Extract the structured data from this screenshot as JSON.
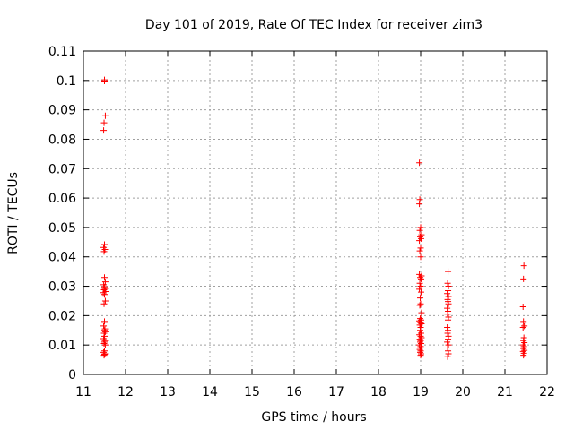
{
  "chart_data": {
    "type": "scatter",
    "title": "Day 101 of 2019, Rate Of TEC Index for receiver zim3",
    "xlabel": "GPS time / hours",
    "ylabel": "ROTI / TECUs",
    "xlim": [
      11,
      22
    ],
    "ylim": [
      0,
      0.11
    ],
    "xticks": [
      "11",
      "12",
      "13",
      "14",
      "15",
      "16",
      "17",
      "18",
      "19",
      "20",
      "21",
      "22"
    ],
    "yticks": [
      "0",
      "0.01",
      "0.02",
      "0.03",
      "0.04",
      "0.05",
      "0.06",
      "0.07",
      "0.08",
      "0.09",
      "0.1",
      "0.11"
    ],
    "grid": true,
    "marker": "+",
    "color": "#ff0000",
    "series": [
      {
        "name": "ROTI",
        "points": [
          [
            11.5,
            0.1002
          ],
          [
            11.5,
            0.0998
          ],
          [
            11.52,
            0.088
          ],
          [
            11.49,
            0.0856
          ],
          [
            11.48,
            0.083
          ],
          [
            11.5,
            0.0442
          ],
          [
            11.48,
            0.0432
          ],
          [
            11.51,
            0.0425
          ],
          [
            11.49,
            0.0418
          ],
          [
            11.5,
            0.033
          ],
          [
            11.52,
            0.0315
          ],
          [
            11.48,
            0.0305
          ],
          [
            11.5,
            0.0298
          ],
          [
            11.51,
            0.0292
          ],
          [
            11.49,
            0.0288
          ],
          [
            11.53,
            0.0282
          ],
          [
            11.47,
            0.0278
          ],
          [
            11.5,
            0.0272
          ],
          [
            11.52,
            0.025
          ],
          [
            11.49,
            0.024
          ],
          [
            11.5,
            0.018
          ],
          [
            11.48,
            0.0165
          ],
          [
            11.51,
            0.0155
          ],
          [
            11.5,
            0.015
          ],
          [
            11.52,
            0.0145
          ],
          [
            11.49,
            0.014
          ],
          [
            11.5,
            0.013
          ],
          [
            11.48,
            0.0122
          ],
          [
            11.51,
            0.0115
          ],
          [
            11.5,
            0.011
          ],
          [
            11.49,
            0.0105
          ],
          [
            11.52,
            0.01
          ],
          [
            11.5,
            0.008
          ],
          [
            11.48,
            0.0075
          ],
          [
            11.51,
            0.007
          ],
          [
            11.5,
            0.0068
          ],
          [
            11.49,
            0.0065
          ],
          [
            18.97,
            0.072
          ],
          [
            18.98,
            0.0595
          ],
          [
            18.97,
            0.058
          ],
          [
            19.0,
            0.05
          ],
          [
            18.98,
            0.049
          ],
          [
            19.02,
            0.0475
          ],
          [
            18.99,
            0.0468
          ],
          [
            19.01,
            0.0462
          ],
          [
            18.97,
            0.0455
          ],
          [
            19.0,
            0.043
          ],
          [
            18.98,
            0.042
          ],
          [
            19.0,
            0.04
          ],
          [
            18.97,
            0.034
          ],
          [
            19.02,
            0.0335
          ],
          [
            18.99,
            0.033
          ],
          [
            19.01,
            0.0325
          ],
          [
            18.98,
            0.031
          ],
          [
            19.0,
            0.03
          ],
          [
            18.97,
            0.029
          ],
          [
            19.01,
            0.028
          ],
          [
            18.99,
            0.026
          ],
          [
            19.0,
            0.024
          ],
          [
            18.98,
            0.0235
          ],
          [
            19.02,
            0.021
          ],
          [
            18.99,
            0.019
          ],
          [
            19.01,
            0.0185
          ],
          [
            18.97,
            0.0182
          ],
          [
            19.0,
            0.0178
          ],
          [
            19.02,
            0.0172
          ],
          [
            18.98,
            0.0168
          ],
          [
            19.0,
            0.016
          ],
          [
            18.99,
            0.015
          ],
          [
            19.01,
            0.014
          ],
          [
            18.97,
            0.0135
          ],
          [
            19.0,
            0.013
          ],
          [
            19.02,
            0.0125
          ],
          [
            18.98,
            0.012
          ],
          [
            19.0,
            0.0115
          ],
          [
            18.99,
            0.011
          ],
          [
            19.01,
            0.0105
          ],
          [
            18.97,
            0.01
          ],
          [
            19.0,
            0.0095
          ],
          [
            19.02,
            0.009
          ],
          [
            18.98,
            0.0085
          ],
          [
            19.0,
            0.008
          ],
          [
            18.99,
            0.0075
          ],
          [
            19.01,
            0.007
          ],
          [
            19.0,
            0.0065
          ],
          [
            19.65,
            0.035
          ],
          [
            19.64,
            0.031
          ],
          [
            19.66,
            0.03
          ],
          [
            19.65,
            0.0285
          ],
          [
            19.63,
            0.0275
          ],
          [
            19.66,
            0.0265
          ],
          [
            19.64,
            0.0255
          ],
          [
            19.65,
            0.0248
          ],
          [
            19.66,
            0.024
          ],
          [
            19.63,
            0.0225
          ],
          [
            19.65,
            0.0215
          ],
          [
            19.64,
            0.0205
          ],
          [
            19.66,
            0.0195
          ],
          [
            19.65,
            0.0185
          ],
          [
            19.63,
            0.016
          ],
          [
            19.65,
            0.015
          ],
          [
            19.64,
            0.014
          ],
          [
            19.66,
            0.013
          ],
          [
            19.65,
            0.012
          ],
          [
            19.63,
            0.011
          ],
          [
            19.66,
            0.01
          ],
          [
            19.64,
            0.009
          ],
          [
            19.65,
            0.008
          ],
          [
            19.66,
            0.007
          ],
          [
            19.64,
            0.006
          ],
          [
            21.45,
            0.037
          ],
          [
            21.44,
            0.0325
          ],
          [
            21.43,
            0.023
          ],
          [
            21.44,
            0.018
          ],
          [
            21.46,
            0.0165
          ],
          [
            21.43,
            0.016
          ],
          [
            21.45,
            0.0125
          ],
          [
            21.44,
            0.0115
          ],
          [
            21.46,
            0.0108
          ],
          [
            21.43,
            0.01
          ],
          [
            21.45,
            0.0095
          ],
          [
            21.44,
            0.0088
          ],
          [
            21.46,
            0.0082
          ],
          [
            21.43,
            0.0078
          ],
          [
            21.45,
            0.0072
          ],
          [
            21.44,
            0.0065
          ]
        ]
      }
    ]
  }
}
